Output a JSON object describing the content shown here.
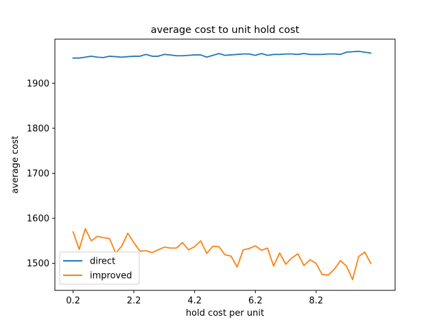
{
  "chart_data": {
    "type": "line",
    "title": "average cost to unit hold cost",
    "xlabel": "hold cost per unit",
    "ylabel": "average cost",
    "xlim": [
      -0.4,
      10.8
    ],
    "ylim": [
      1440,
      1998
    ],
    "xticks": [
      0.2,
      2.2,
      4.2,
      6.2,
      8.2
    ],
    "xtick_labels": [
      "0.2",
      "2.2",
      "4.2",
      "6.2",
      "8.2"
    ],
    "yticks": [
      1500,
      1600,
      1700,
      1800,
      1900
    ],
    "ytick_labels": [
      "1500",
      "1600",
      "1700",
      "1800",
      "1900"
    ],
    "grid": false,
    "legend_position": "lower-left",
    "x": [
      0.2,
      0.4,
      0.6,
      0.8,
      1.0,
      1.2,
      1.4,
      1.6,
      1.8,
      2.0,
      2.2,
      2.4,
      2.6,
      2.8,
      3.0,
      3.2,
      3.4,
      3.6,
      3.8,
      4.0,
      4.2,
      4.4,
      4.6,
      4.8,
      5.0,
      5.2,
      5.4,
      5.6,
      5.8,
      6.0,
      6.2,
      6.4,
      6.6,
      6.8,
      7.0,
      7.2,
      7.4,
      7.6,
      7.8,
      8.0,
      8.2,
      8.4,
      8.6,
      8.8,
      9.0,
      9.2,
      9.4,
      9.6,
      9.8,
      10.0
    ],
    "series": [
      {
        "name": "direct",
        "color": "#1f77b4",
        "values": [
          1956,
          1956,
          1958,
          1960,
          1958,
          1957,
          1960,
          1959,
          1958,
          1959,
          1960,
          1960,
          1964,
          1960,
          1960,
          1964,
          1963,
          1961,
          1961,
          1962,
          1963,
          1963,
          1958,
          1962,
          1966,
          1962,
          1963,
          1964,
          1965,
          1965,
          1962,
          1966,
          1962,
          1964,
          1964,
          1965,
          1965,
          1964,
          1966,
          1964,
          1964,
          1964,
          1965,
          1965,
          1964,
          1969,
          1970,
          1971,
          1969,
          1967
        ]
      },
      {
        "name": "improved",
        "color": "#ff7f0e",
        "values": [
          1570,
          1531,
          1577,
          1550,
          1560,
          1557,
          1555,
          1523,
          1538,
          1567,
          1546,
          1527,
          1528,
          1524,
          1530,
          1536,
          1534,
          1534,
          1546,
          1530,
          1537,
          1550,
          1522,
          1538,
          1537,
          1519,
          1516,
          1492,
          1530,
          1533,
          1539,
          1529,
          1534,
          1494,
          1523,
          1498,
          1512,
          1521,
          1495,
          1508,
          1500,
          1475,
          1474,
          1487,
          1506,
          1494,
          1464,
          1515,
          1525,
          1500
        ]
      }
    ]
  }
}
